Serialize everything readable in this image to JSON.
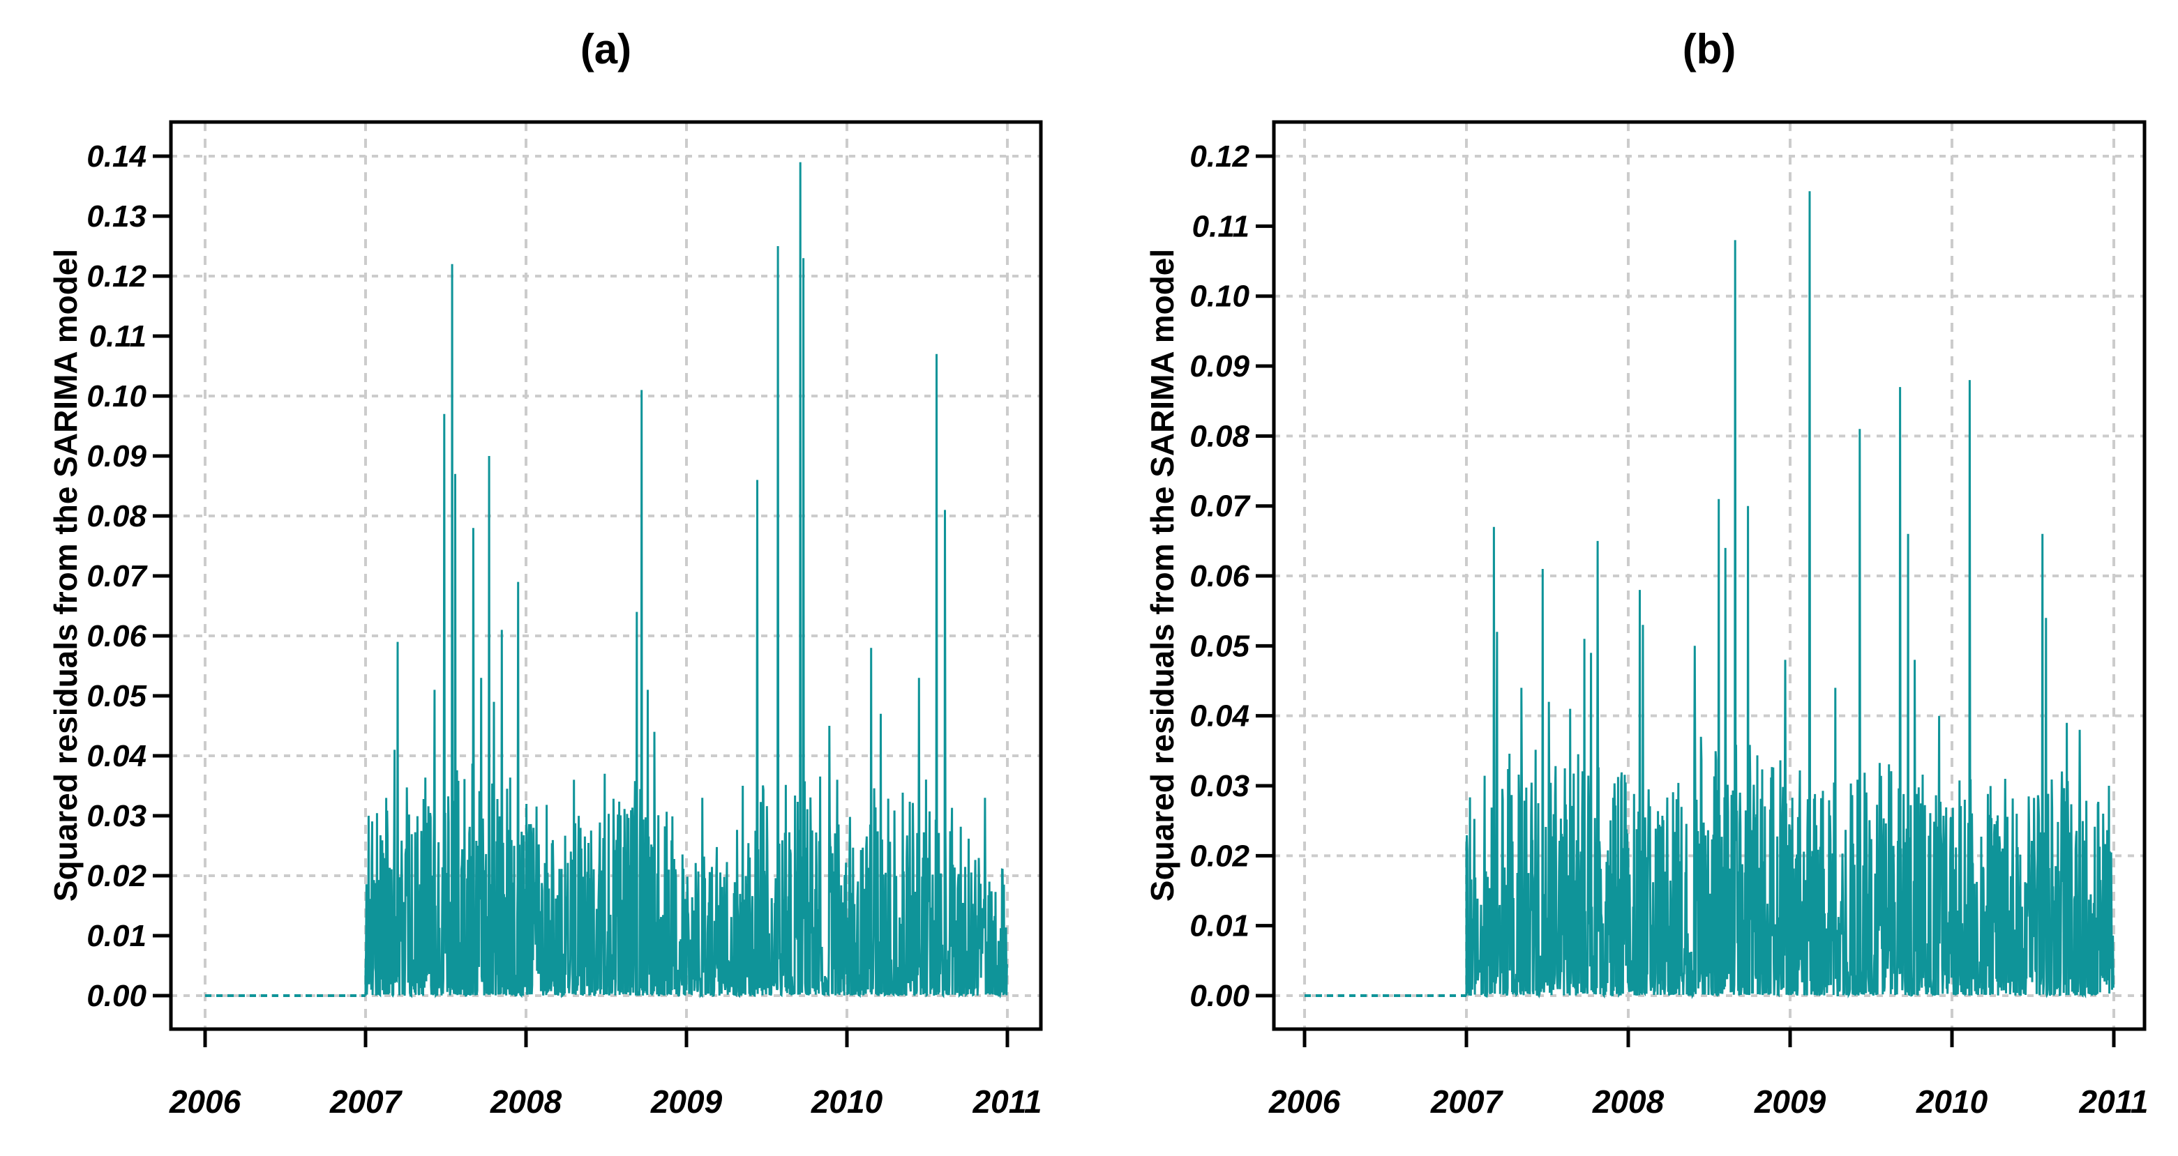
{
  "figure": {
    "background": "#ffffff",
    "panel_count": 2
  },
  "styles": {
    "series_color": "#0F9499",
    "grid_color": "#CCCCCC",
    "axis_color": "#000000",
    "text_color": "#000000"
  },
  "chart_data": [
    {
      "type": "line",
      "panel": "a",
      "title": "(a)",
      "xlabel": "",
      "ylabel": "Squared residuals from the SARIMA model",
      "x_ticks": [
        2006,
        2007,
        2008,
        2009,
        2010,
        2011
      ],
      "x_tick_labels": [
        "2006",
        "2007",
        "2008",
        "2009",
        "2010",
        "2011"
      ],
      "y_tick_step": 0.01,
      "y_tick_max": 0.14,
      "y_tick_labels": [
        "0.00",
        "0.01",
        "0.02",
        "0.03",
        "0.04",
        "0.05",
        "0.06",
        "0.07",
        "0.08",
        "0.09",
        "0.10",
        "0.11",
        "0.12",
        "0.13",
        "0.14"
      ],
      "xlim": [
        2005.79,
        2011.21
      ],
      "ylim": [
        -0.0056,
        0.1457
      ],
      "grid": {
        "h_step": 0.02,
        "h_style": "dashed-fine",
        "v_style": "dashed",
        "visible": true
      },
      "legend": "none",
      "flat_segment": {
        "from": 2006.0,
        "to": 2007.0,
        "value": 0.0,
        "style": "dashed"
      },
      "data_range": [
        2007.0,
        2011.0
      ],
      "points_per_year": 365,
      "seed": 11,
      "noise": {
        "power": 3.0,
        "spike_prob": 0.12,
        "spike_lo": 0.35,
        "spike_hi": 0.5
      },
      "envelope": [
        [
          2007.0,
          0.03
        ],
        [
          2007.15,
          0.034
        ],
        [
          2007.4,
          0.04
        ],
        [
          2007.6,
          0.042
        ],
        [
          2007.85,
          0.04
        ],
        [
          2008.0,
          0.034
        ],
        [
          2008.25,
          0.03
        ],
        [
          2008.5,
          0.033
        ],
        [
          2008.65,
          0.038
        ],
        [
          2008.85,
          0.032
        ],
        [
          2009.05,
          0.026
        ],
        [
          2009.3,
          0.029
        ],
        [
          2009.5,
          0.036
        ],
        [
          2009.7,
          0.04
        ],
        [
          2009.9,
          0.036
        ],
        [
          2010.1,
          0.035
        ],
        [
          2010.3,
          0.034
        ],
        [
          2010.55,
          0.038
        ],
        [
          2010.75,
          0.028
        ],
        [
          2010.99,
          0.022
        ]
      ],
      "peaks": [
        [
          2007.02,
          0.03
        ],
        [
          2007.18,
          0.041
        ],
        [
          2007.2,
          0.059
        ],
        [
          2007.43,
          0.051
        ],
        [
          2007.49,
          0.097
        ],
        [
          2007.54,
          0.122
        ],
        [
          2007.56,
          0.087
        ],
        [
          2007.67,
          0.078
        ],
        [
          2007.72,
          0.053
        ],
        [
          2007.77,
          0.09
        ],
        [
          2007.8,
          0.049
        ],
        [
          2007.85,
          0.061
        ],
        [
          2007.95,
          0.069
        ],
        [
          2008.3,
          0.036
        ],
        [
          2008.49,
          0.037
        ],
        [
          2008.69,
          0.064
        ],
        [
          2008.72,
          0.101
        ],
        [
          2008.76,
          0.051
        ],
        [
          2008.8,
          0.044
        ],
        [
          2009.1,
          0.033
        ],
        [
          2009.35,
          0.035
        ],
        [
          2009.44,
          0.086
        ],
        [
          2009.57,
          0.125
        ],
        [
          2009.71,
          0.139
        ],
        [
          2009.73,
          0.123
        ],
        [
          2009.89,
          0.045
        ],
        [
          2009.94,
          0.036
        ],
        [
          2010.15,
          0.058
        ],
        [
          2010.21,
          0.047
        ],
        [
          2010.45,
          0.053
        ],
        [
          2010.56,
          0.107
        ],
        [
          2010.61,
          0.081
        ],
        [
          2010.86,
          0.033
        ],
        [
          2010.97,
          0.021
        ]
      ]
    },
    {
      "type": "line",
      "panel": "b",
      "title": "(b)",
      "xlabel": "",
      "ylabel": "Squared residuals from the SARIMA model",
      "x_ticks": [
        2006,
        2007,
        2008,
        2009,
        2010,
        2011
      ],
      "x_tick_labels": [
        "2006",
        "2007",
        "2008",
        "2009",
        "2010",
        "2011"
      ],
      "y_tick_step": 0.01,
      "y_tick_max": 0.12,
      "y_tick_labels": [
        "0.00",
        "0.01",
        "0.02",
        "0.03",
        "0.04",
        "0.05",
        "0.06",
        "0.07",
        "0.08",
        "0.09",
        "0.10",
        "0.11",
        "0.12"
      ],
      "xlim": [
        2005.78,
        2011.19
      ],
      "ylim": [
        -0.0048,
        0.1249
      ],
      "grid": {
        "h_step": 0.02,
        "h_style": "dashed-fine",
        "v_style": "dashed",
        "visible": true
      },
      "legend": "none",
      "flat_segment": {
        "from": 2006.0,
        "to": 2007.0,
        "value": 0.0,
        "style": "dashed"
      },
      "data_range": [
        2007.0,
        2011.0
      ],
      "points_per_year": 365,
      "seed": 77,
      "noise": {
        "power": 3.0,
        "spike_prob": 0.13,
        "spike_lo": 0.35,
        "spike_hi": 0.5
      },
      "envelope": [
        [
          2007.0,
          0.03
        ],
        [
          2007.3,
          0.036
        ],
        [
          2007.7,
          0.035
        ],
        [
          2008.0,
          0.032
        ],
        [
          2008.35,
          0.034
        ],
        [
          2008.7,
          0.037
        ],
        [
          2009.0,
          0.033
        ],
        [
          2009.35,
          0.034
        ],
        [
          2009.65,
          0.035
        ],
        [
          2010.0,
          0.033
        ],
        [
          2010.35,
          0.03
        ],
        [
          2010.7,
          0.033
        ],
        [
          2010.99,
          0.027
        ]
      ],
      "peaks": [
        [
          2007.17,
          0.067
        ],
        [
          2007.19,
          0.052
        ],
        [
          2007.34,
          0.044
        ],
        [
          2007.47,
          0.061
        ],
        [
          2007.51,
          0.042
        ],
        [
          2007.64,
          0.041
        ],
        [
          2007.73,
          0.051
        ],
        [
          2007.77,
          0.049
        ],
        [
          2007.81,
          0.065
        ],
        [
          2008.07,
          0.058
        ],
        [
          2008.09,
          0.053
        ],
        [
          2008.41,
          0.05
        ],
        [
          2008.45,
          0.037
        ],
        [
          2008.56,
          0.071
        ],
        [
          2008.6,
          0.064
        ],
        [
          2008.66,
          0.108
        ],
        [
          2008.74,
          0.07
        ],
        [
          2008.97,
          0.048
        ],
        [
          2009.12,
          0.115
        ],
        [
          2009.28,
          0.044
        ],
        [
          2009.43,
          0.081
        ],
        [
          2009.68,
          0.087
        ],
        [
          2009.73,
          0.066
        ],
        [
          2009.77,
          0.048
        ],
        [
          2009.92,
          0.04
        ],
        [
          2010.11,
          0.088
        ],
        [
          2010.33,
          0.031
        ],
        [
          2010.4,
          0.026
        ],
        [
          2010.56,
          0.066
        ],
        [
          2010.58,
          0.054
        ],
        [
          2010.71,
          0.039
        ],
        [
          2010.79,
          0.038
        ],
        [
          2010.97,
          0.03
        ]
      ]
    }
  ]
}
